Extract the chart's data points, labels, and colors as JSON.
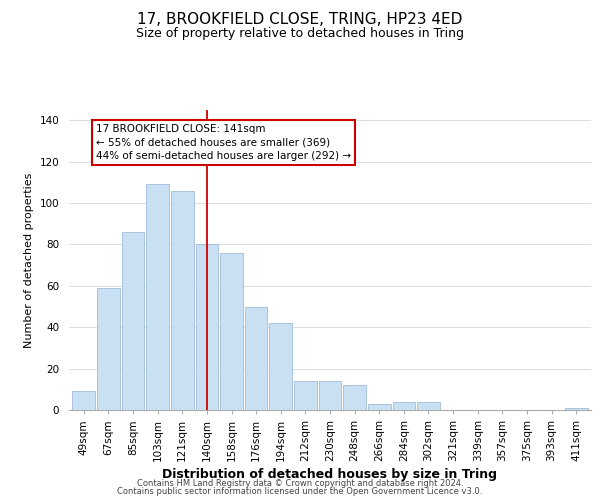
{
  "title": "17, BROOKFIELD CLOSE, TRING, HP23 4ED",
  "subtitle": "Size of property relative to detached houses in Tring",
  "xlabel": "Distribution of detached houses by size in Tring",
  "ylabel": "Number of detached properties",
  "footer_line1": "Contains HM Land Registry data © Crown copyright and database right 2024.",
  "footer_line2": "Contains public sector information licensed under the Open Government Licence v3.0.",
  "bar_labels": [
    "49sqm",
    "67sqm",
    "85sqm",
    "103sqm",
    "121sqm",
    "140sqm",
    "158sqm",
    "176sqm",
    "194sqm",
    "212sqm",
    "230sqm",
    "248sqm",
    "266sqm",
    "284sqm",
    "302sqm",
    "321sqm",
    "339sqm",
    "357sqm",
    "375sqm",
    "393sqm",
    "411sqm"
  ],
  "bar_values": [
    9,
    59,
    86,
    109,
    106,
    80,
    76,
    50,
    42,
    14,
    14,
    12,
    3,
    4,
    4,
    0,
    0,
    0,
    0,
    0,
    1
  ],
  "bar_color": "#c9dff2",
  "bar_edge_color": "#a0bcd8",
  "vline_x_index": 5,
  "vline_color": "#cc0000",
  "annotation_text": "17 BROOKFIELD CLOSE: 141sqm\n← 55% of detached houses are smaller (369)\n44% of semi-detached houses are larger (292) →",
  "annotation_box_color": "#ffffff",
  "annotation_box_edge_color": "#cc0000",
  "ylim": [
    0,
    145
  ],
  "yticks": [
    0,
    20,
    40,
    60,
    80,
    100,
    120,
    140
  ],
  "background_color": "#ffffff",
  "plot_bg_color": "#ffffff",
  "grid_color": "#dddddd",
  "title_fontsize": 11,
  "subtitle_fontsize": 9,
  "xlabel_fontsize": 9,
  "ylabel_fontsize": 8,
  "tick_fontsize": 7.5,
  "annotation_fontsize": 7.5,
  "footer_fontsize": 6
}
